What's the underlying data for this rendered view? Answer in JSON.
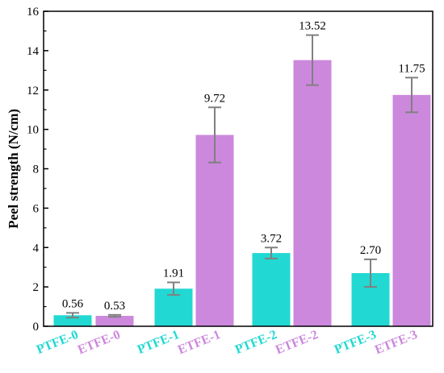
{
  "chart_data": {
    "type": "bar",
    "ylabel": "Peel strength (N/cm)",
    "ylim": [
      0,
      16
    ],
    "yticks": [
      0,
      2,
      4,
      6,
      8,
      10,
      12,
      14,
      16
    ],
    "grid": false,
    "categories": [
      "PTFE-0",
      "ETFE-0",
      "PTFE-1",
      "ETFE-1",
      "PTFE-2",
      "ETFE-2",
      "PTFE-3",
      "ETFE-3"
    ],
    "values": [
      0.56,
      0.53,
      1.91,
      9.72,
      3.72,
      13.52,
      2.7,
      11.75
    ],
    "value_labels": [
      "0.56",
      "0.53",
      "1.91",
      "9.72",
      "3.72",
      "13.52",
      "2.70",
      "11.75"
    ],
    "errors": [
      0.12,
      0.05,
      0.32,
      1.4,
      0.28,
      1.27,
      0.7,
      0.88
    ],
    "series_type": [
      "PTFE",
      "ETFE",
      "PTFE",
      "ETFE",
      "PTFE",
      "ETFE",
      "PTFE",
      "ETFE"
    ],
    "colors": {
      "PTFE": "#22d8d2",
      "ETFE": "#cc88dd",
      "error_bar": "#808080",
      "axis": "#000000"
    }
  }
}
